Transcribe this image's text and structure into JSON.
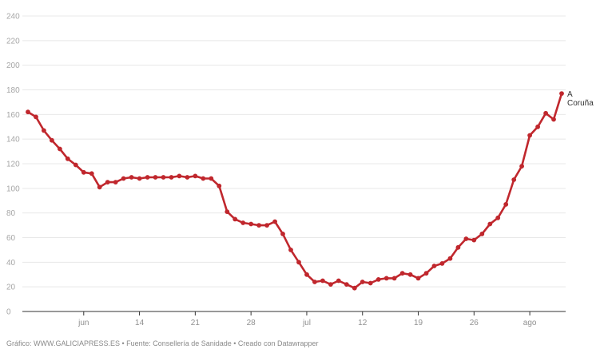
{
  "chart_data": {
    "type": "line",
    "ylim": [
      0,
      240
    ],
    "yticks": [
      0,
      20,
      40,
      60,
      80,
      100,
      120,
      140,
      160,
      180,
      200,
      220,
      240
    ],
    "grid": true,
    "x_tick_labels": [
      {
        "day": 7,
        "label": "jun"
      },
      {
        "day": 14,
        "label": "14"
      },
      {
        "day": 21,
        "label": "21"
      },
      {
        "day": 28,
        "label": "28"
      },
      {
        "day": 35,
        "label": "jul"
      },
      {
        "day": 42,
        "label": "12"
      },
      {
        "day": 49,
        "label": "19"
      },
      {
        "day": 56,
        "label": "26"
      },
      {
        "day": 63,
        "label": "ago"
      }
    ],
    "series": [
      {
        "name": "A Coruña",
        "color": "#c0272d",
        "start_day": 0,
        "values": [
          162,
          158,
          147,
          139,
          132,
          124,
          119,
          113,
          112,
          101,
          105,
          105,
          108,
          109,
          108,
          109,
          109,
          109,
          109,
          110,
          109,
          110,
          108,
          108,
          102,
          81,
          75,
          72,
          71,
          70,
          70,
          73,
          63,
          50,
          40,
          30,
          24,
          25,
          22,
          25,
          22,
          19,
          24,
          23,
          26,
          27,
          27,
          31,
          30,
          27,
          31,
          37,
          39,
          43,
          52,
          59,
          58,
          63,
          71,
          76,
          87,
          107,
          118,
          143,
          150,
          161,
          156,
          177
        ]
      }
    ]
  },
  "footer": "Gráfico: WWW.GALICIAPRESS.ES • Fuente: Consellería de Sanidade • Creado con Datawrapper"
}
